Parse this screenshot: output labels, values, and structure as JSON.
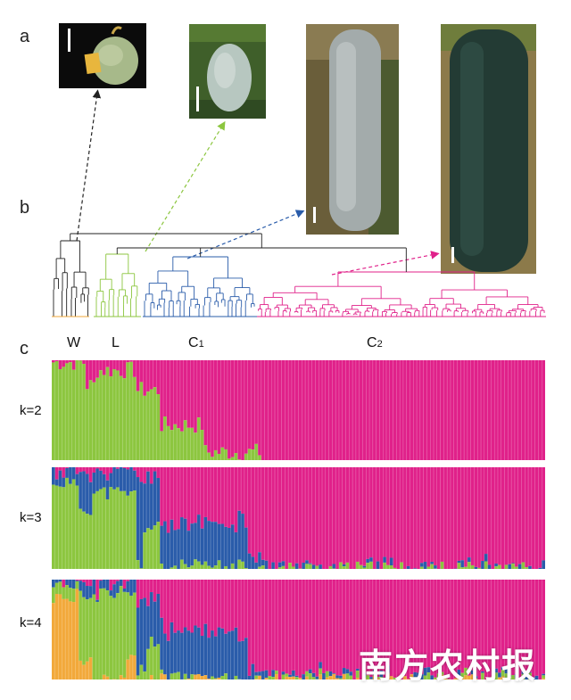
{
  "figure": {
    "panels": {
      "a": "a",
      "b": "b",
      "c": "c"
    },
    "groups": {
      "W": "W",
      "L": "L",
      "C1": "C",
      "C1_sub": "1",
      "C2": "C",
      "C2_sub": "2"
    },
    "colors": {
      "W": "#222222",
      "L": "#8cc63f",
      "C1": "#2a5caa",
      "C2": "#e0218a",
      "orange": "#f2a93b"
    },
    "watermark": "南方农村报"
  },
  "chart_data": [
    {
      "type": "bar",
      "stacked": true,
      "title": "k=2",
      "n_samples": 146,
      "series": [
        {
          "name": "cluster-green",
          "color": "#8cc63f"
        },
        {
          "name": "cluster-magenta",
          "color": "#e0218a"
        }
      ],
      "profile": {
        "green_fraction_by_segment": [
          {
            "from": 0,
            "to": 10,
            "value": 0.98
          },
          {
            "from": 10,
            "to": 13,
            "value": 0.75
          },
          {
            "from": 13,
            "to": 25,
            "value": 0.9
          },
          {
            "from": 25,
            "to": 32,
            "value": 0.7
          },
          {
            "from": 32,
            "to": 45,
            "value": 0.35
          },
          {
            "from": 45,
            "to": 62,
            "value": 0.08
          },
          {
            "from": 62,
            "to": 146,
            "value": 0.0
          }
        ]
      },
      "ylim": [
        0,
        1
      ]
    },
    {
      "type": "bar",
      "stacked": true,
      "title": "k=3",
      "n_samples": 146,
      "series": [
        {
          "name": "cluster-green",
          "color": "#8cc63f"
        },
        {
          "name": "cluster-blue",
          "color": "#2a5caa"
        },
        {
          "name": "cluster-magenta",
          "color": "#e0218a"
        }
      ],
      "ylim": [
        0,
        1
      ]
    },
    {
      "type": "bar",
      "stacked": true,
      "title": "k=4",
      "n_samples": 146,
      "series": [
        {
          "name": "cluster-orange",
          "color": "#f2a93b"
        },
        {
          "name": "cluster-green",
          "color": "#8cc63f"
        },
        {
          "name": "cluster-blue",
          "color": "#2a5caa"
        },
        {
          "name": "cluster-magenta",
          "color": "#e0218a"
        }
      ],
      "ylim": [
        0,
        1
      ]
    }
  ]
}
